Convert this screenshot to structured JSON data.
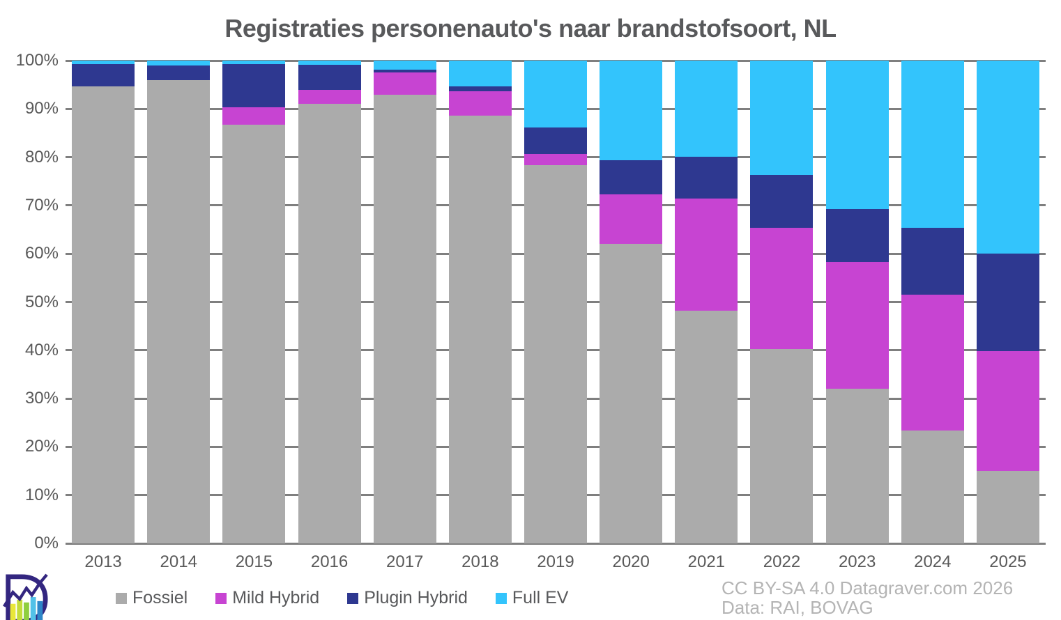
{
  "title": "Registraties personenauto's naar brandstofsoort, NL",
  "chart_data": {
    "type": "bar",
    "stacked": true,
    "stacking": "percent",
    "title": "Registraties personenauto's naar brandstofsoort, NL",
    "xlabel": "",
    "ylabel": "",
    "ylim": [
      0,
      100
    ],
    "grid": true,
    "legend_position": "bottom",
    "categories": [
      "2013",
      "2014",
      "2015",
      "2016",
      "2017",
      "2018",
      "2019",
      "2020",
      "2021",
      "2022",
      "2023",
      "2024",
      "2025"
    ],
    "y_ticks": [
      "0%",
      "10%",
      "20%",
      "30%",
      "40%",
      "50%",
      "60%",
      "70%",
      "80%",
      "90%",
      "100%"
    ],
    "series": [
      {
        "name": "Fossiel",
        "color": "#ABABAB",
        "values": [
          94.7,
          96.0,
          86.7,
          91.1,
          92.9,
          88.6,
          78.4,
          62.1,
          48.2,
          40.3,
          32.0,
          23.4,
          15.0
        ]
      },
      {
        "name": "Mild Hybrid",
        "color": "#C744D2",
        "values": [
          0.0,
          0.0,
          3.7,
          2.9,
          4.6,
          5.1,
          2.3,
          10.2,
          23.3,
          25.0,
          26.3,
          28.1,
          24.8
        ]
      },
      {
        "name": "Plugin Hybrid",
        "color": "#2E3890",
        "values": [
          4.6,
          3.0,
          8.9,
          5.1,
          0.6,
          0.9,
          5.4,
          7.1,
          8.6,
          11.1,
          10.9,
          13.9,
          20.3
        ]
      },
      {
        "name": "Full EV",
        "color": "#33C4FC",
        "values": [
          0.7,
          1.0,
          0.7,
          0.9,
          1.9,
          5.4,
          13.9,
          20.6,
          19.9,
          23.6,
          30.8,
          34.6,
          39.9
        ]
      }
    ]
  },
  "footer": {
    "license": "CC BY-SA 4.0 Datagraver.com 2026",
    "source": "Data: RAI, BOVAG"
  },
  "colors": {
    "gridline": "#7F7F7F",
    "axis_text": "#595959",
    "title_text": "#58595B",
    "attribution_text": "#B4B4B4",
    "background": "#FFFFFF"
  },
  "logo": {
    "name": "datagraver-logo"
  }
}
